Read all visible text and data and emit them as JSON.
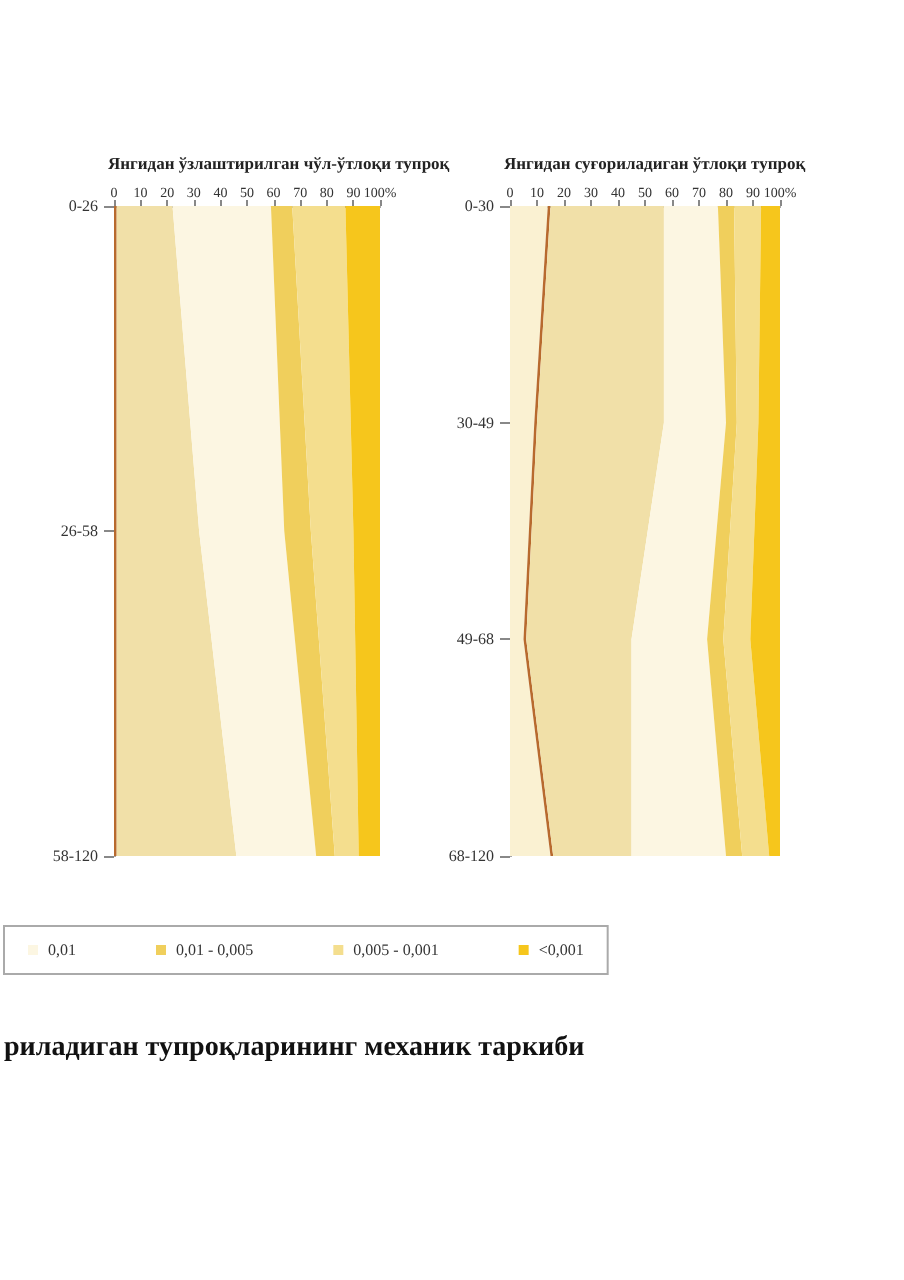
{
  "chart_data": [
    {
      "type": "area",
      "title": "Янгидан ўзлаштирилган чўл-ўтлоқи тупроқ",
      "orientation": "horizontal",
      "stacked": true,
      "categories": [
        "0-26",
        "26-58",
        "58-120"
      ],
      "xlim": [
        0,
        100
      ],
      "xticks": [
        0,
        10,
        20,
        30,
        40,
        50,
        60,
        70,
        80,
        90,
        {
          "value": 100,
          "label": "100%"
        }
      ],
      "legend": false,
      "series": [
        {
          "color": "#b86a2e",
          "values": [
            1,
            1,
            1
          ]
        },
        {
          "color": "#f1e0a8",
          "values": [
            21,
            31,
            45
          ]
        },
        {
          "color": "#fcf6e2",
          "values": [
            37,
            32,
            30
          ]
        },
        {
          "color": "#f0cf5c",
          "values": [
            8,
            10,
            7
          ]
        },
        {
          "color": "#f4de8e",
          "values": [
            20,
            16,
            9
          ]
        },
        {
          "color": "#f6c61c",
          "values": [
            13,
            10,
            8
          ]
        }
      ]
    },
    {
      "type": "area",
      "title": "Янгидан суғориладиган ўтлоқи тупроқ",
      "orientation": "horizontal",
      "stacked": true,
      "categories": [
        "0-30",
        "30-49",
        "49-68",
        "68-120"
      ],
      "xlim": [
        0,
        100
      ],
      "xticks": [
        0,
        10,
        20,
        30,
        40,
        50,
        60,
        70,
        80,
        90,
        {
          "value": 100,
          "label": "100%"
        }
      ],
      "legend": "bottom",
      "annotations": [
        "риладиган тупроқларининг механик таркиби"
      ],
      "series": [
        {
          "color": "#faf1d2",
          "values": [
            14,
            9,
            5,
            15
          ]
        },
        {
          "color": "#b86a2e",
          "values": [
            1,
            1,
            1,
            1
          ]
        },
        {
          "color": "#f1e0a8",
          "values": [
            42,
            47,
            39,
            29
          ]
        },
        {
          "name": "0,01",
          "color": "#fcf6e2",
          "values": [
            20,
            23,
            28,
            35
          ]
        },
        {
          "name": "0,01 - 0,005",
          "color": "#f0cf5c",
          "values": [
            6,
            4,
            6,
            6
          ]
        },
        {
          "name": "0,005 - 0,001",
          "color": "#f4de8e",
          "values": [
            10,
            8,
            10,
            10
          ]
        },
        {
          "name": "<0,001",
          "color": "#f6c61c",
          "values": [
            7,
            8,
            11,
            4
          ]
        }
      ]
    }
  ]
}
